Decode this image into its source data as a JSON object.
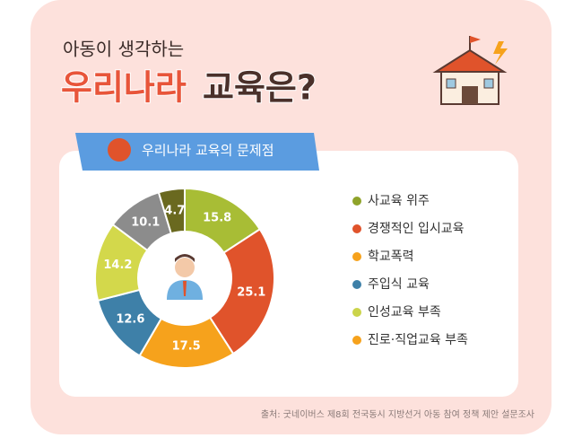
{
  "header": {
    "subtitle": "아동이 생각하는",
    "title_highlight": "우리나라",
    "title_rest": "교육은?"
  },
  "chart_data": {
    "type": "donut",
    "title": "우리나라 교육의 문제점",
    "categories": [
      "사교육 위주",
      "경쟁적인 입시교육",
      "학교폭력",
      "주입식 교육",
      "인성교육 부족",
      "진로·직업교육 부족",
      null
    ],
    "values": [
      15.8,
      25.1,
      17.5,
      12.6,
      14.2,
      10.1,
      4.7
    ],
    "colors": [
      "#a8bd35",
      "#e0532b",
      "#f6a21c",
      "#3e80a8",
      "#d3d84b",
      "#8c8c8c",
      "#6a691f"
    ],
    "legend_colors": [
      "#8fa32a",
      "#e0532b",
      "#f6a21c",
      "#3e80a8",
      "#cbd44a",
      "#f6a21c"
    ]
  },
  "source": "출처: 굿네이버스 제8회 전국동시 지방선거 아동 참여 정책 제안 설문조사"
}
